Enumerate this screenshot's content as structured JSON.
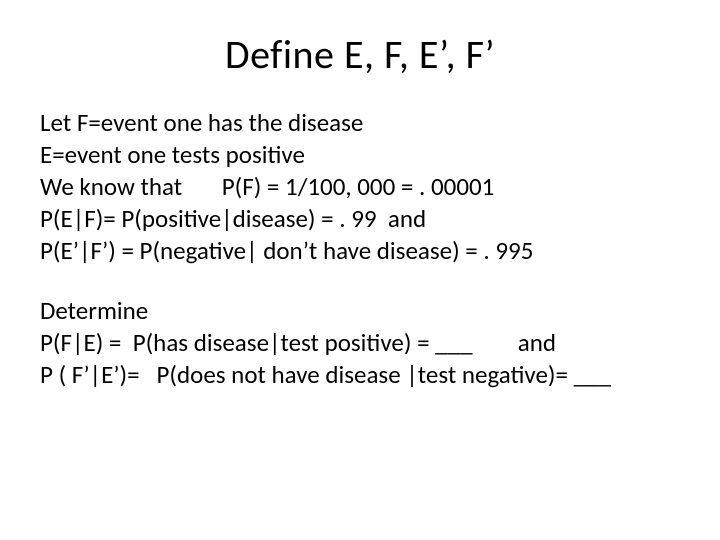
{
  "title": "Define E, F, E’, F’",
  "block1": {
    "l1": "Let F=event one has the disease",
    "l2": "E=event one tests positive",
    "l3": "We know that       P(F) = 1/100, 000 = . 00001",
    "l4": "P(E|F)= P(positive|disease) = . 99  and",
    "l5": "P(E’|F’) = P(negative| don’t have disease) = . 995"
  },
  "block2": {
    "l1": "Determine",
    "l2": "P(F|E) =  P(has disease|test positive) = ___        and",
    "l3": "P ( F’|E’)=   P(does not have disease |test negative)= ___"
  }
}
